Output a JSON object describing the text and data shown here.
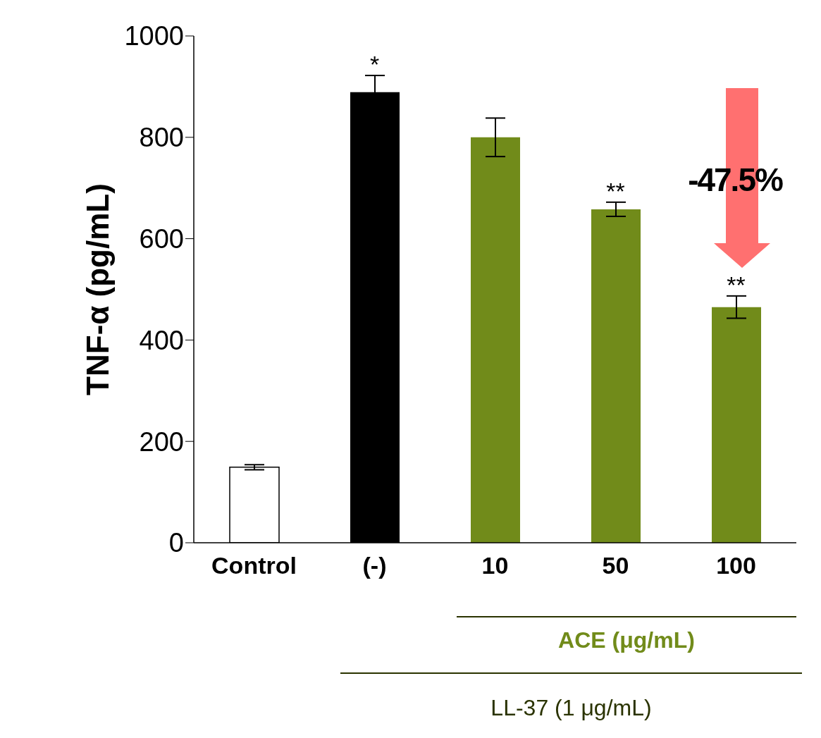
{
  "chart_data": {
    "type": "bar",
    "ylabel": "TNF-α (pg/mL)",
    "categories": [
      "Control",
      "(-)",
      "10",
      "50",
      "100"
    ],
    "values": [
      149,
      889,
      800,
      658,
      465
    ],
    "errors": [
      5,
      33,
      38,
      14,
      22
    ],
    "colors": [
      "#ffffff",
      "#000000",
      "#718b1a",
      "#718b1a",
      "#718b1a"
    ],
    "ylim": [
      0,
      1000
    ],
    "yticks": [
      0,
      200,
      400,
      600,
      800,
      1000
    ],
    "grid": false,
    "legend": false,
    "annotations": [
      {
        "text": "*",
        "x": "(-)",
        "y": 922
      },
      {
        "text": "**",
        "x": "50",
        "y": 672
      },
      {
        "text": "**",
        "x": "100",
        "y": 487
      },
      "-47.5%",
      "ACE (μg/mL)",
      "LL-37 (1 μg/mL)"
    ]
  }
}
